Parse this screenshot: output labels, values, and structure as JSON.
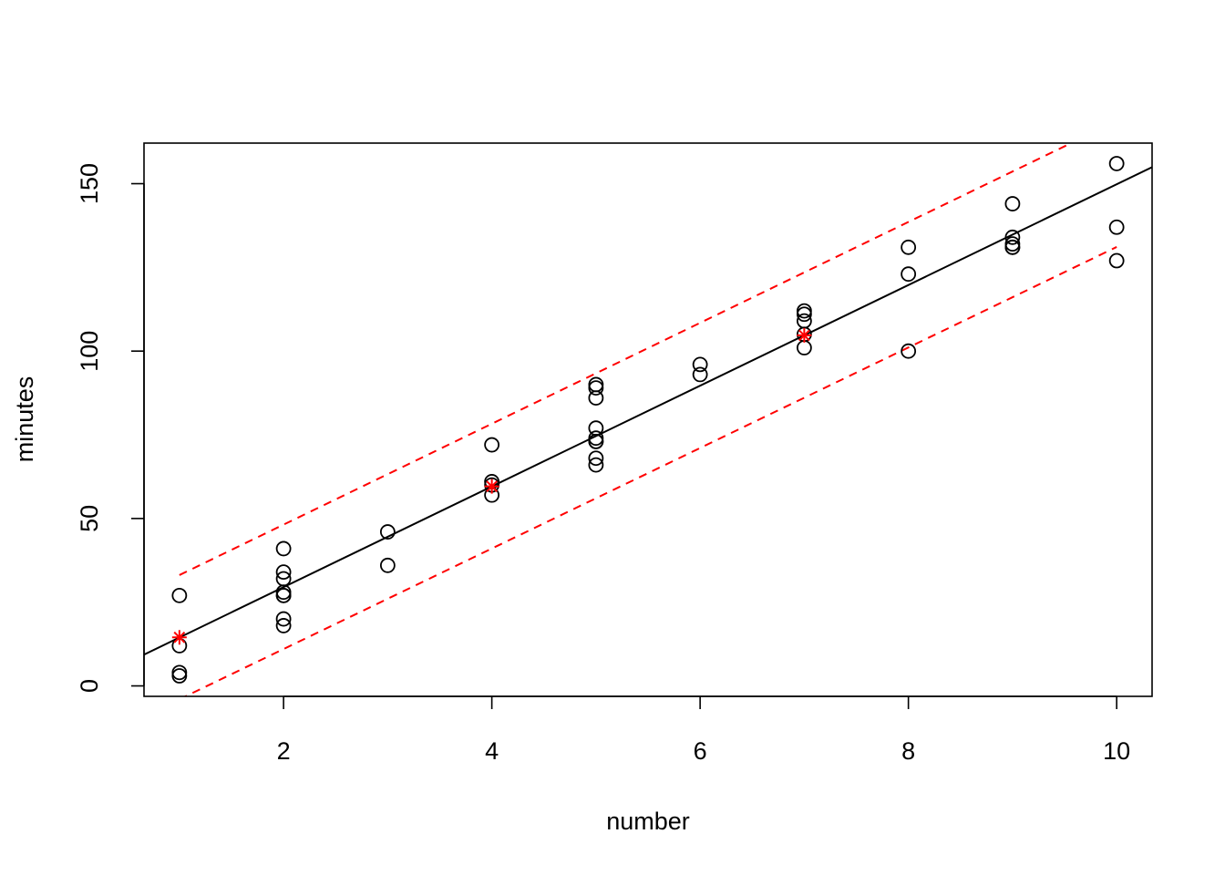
{
  "chart_data": {
    "type": "scatter",
    "title": "",
    "xlabel": "number",
    "ylabel": "minutes",
    "xlim": [
      0.66,
      10.34
    ],
    "ylim": [
      -3.12,
      162.12
    ],
    "x_ticks": [
      2,
      4,
      6,
      8,
      10
    ],
    "y_ticks": [
      0,
      50,
      100,
      150
    ],
    "grid": false,
    "legend": "none",
    "colors": {
      "points": "#000000",
      "fit": "#000000",
      "interval": "#ff0000",
      "predicted": "#ff0000"
    },
    "observed": {
      "x": [
        1,
        1,
        1,
        1,
        2,
        2,
        2,
        2,
        2,
        2,
        2,
        2,
        3,
        3,
        4,
        4,
        4,
        4,
        5,
        5,
        5,
        5,
        5,
        5,
        5,
        5,
        5,
        6,
        6,
        7,
        7,
        7,
        7,
        7,
        8,
        8,
        8,
        9,
        9,
        9,
        9,
        9,
        10,
        10,
        10
      ],
      "y": [
        27,
        12,
        4,
        3,
        41,
        34,
        32,
        28,
        27,
        20,
        18,
        27,
        46,
        36,
        72,
        61,
        60,
        57,
        90,
        89,
        86,
        77,
        74,
        73,
        73,
        68,
        66,
        96,
        93,
        112,
        111,
        109,
        105,
        101,
        131,
        123,
        100,
        144,
        134,
        132,
        131,
        131,
        156,
        137,
        127
      ]
    },
    "fit_line": {
      "intercept": -0.58,
      "slope": 15.04
    },
    "prediction_interval": {
      "x": [
        1,
        10
      ],
      "lower": [
        -4.0,
        131.1
      ],
      "upper": [
        33.1,
        168.7
      ]
    },
    "predicted_points": {
      "x": [
        1,
        4,
        7
      ],
      "y": [
        14.5,
        59.6,
        104.7
      ]
    }
  }
}
